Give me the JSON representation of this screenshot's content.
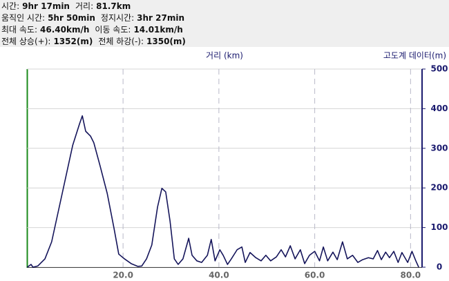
{
  "header": {
    "rows": [
      [
        {
          "label": "시간:",
          "value": "9hr 17min"
        },
        {
          "label": "거리:",
          "value": "81.7km"
        }
      ],
      [
        {
          "label": "움직인 시간:",
          "value": "5hr 50min"
        },
        {
          "label": "정지시간:",
          "value": "3hr 27min"
        }
      ],
      [
        {
          "label": "최대 속도:",
          "value": "46.40km/h"
        },
        {
          "label": "이동 속도:",
          "value": "14.01km/h"
        }
      ],
      [
        {
          "label": "전체 상승(+):",
          "value": "1352(m)"
        },
        {
          "label": "전체 하강(-):",
          "value": "1350(m)"
        }
      ]
    ]
  },
  "chart_data": {
    "type": "line",
    "x_label": "거리 (km)",
    "y_label": "고도계 데이터(m)",
    "xlim": [
      0,
      82.4
    ],
    "ylim": [
      0,
      500
    ],
    "xticks": [
      {
        "value": 20,
        "label": "20.0"
      },
      {
        "value": 40,
        "label": "40.0"
      },
      {
        "value": 60,
        "label": "60.0"
      },
      {
        "value": 80,
        "label": "80.0"
      }
    ],
    "yticks": [
      0,
      100,
      200,
      300,
      400,
      500
    ],
    "grid": true,
    "series": [
      {
        "color": "#14145a",
        "x": [
          0,
          0.8,
          1.2,
          2.2,
          3.7,
          5.1,
          7.3,
          9.5,
          10.9,
          11.5,
          12.2,
          13.2,
          13.9,
          15.2,
          16.7,
          18.1,
          19.1,
          20.3,
          21.7,
          23.1,
          23.9,
          24.9,
          26,
          27.2,
          28.1,
          28.9,
          29.8,
          30.7,
          31.5,
          32.5,
          33.7,
          34.4,
          35.4,
          36.4,
          37.6,
          38.4,
          39.2,
          40.2,
          40.9,
          41.8,
          42.6,
          43.8,
          44.8,
          45.5,
          46.5,
          47.7,
          48.8,
          49.8,
          50.8,
          52,
          53,
          53.9,
          54.9,
          55.9,
          57,
          57.9,
          58.9,
          60,
          61,
          61.8,
          62.7,
          63.8,
          64.7,
          65.8,
          66.8,
          67.9,
          69,
          70,
          71.2,
          72.2,
          73.1,
          73.9,
          74.8,
          75.6,
          76.5,
          77.4,
          78.2,
          79.4,
          80.3,
          81.1,
          81.7
        ],
        "values": [
          0,
          7,
          0,
          3,
          21,
          64,
          186,
          308,
          361,
          382,
          343,
          331,
          314,
          256,
          186,
          99,
          33,
          21,
          9,
          2,
          3,
          21,
          56,
          152,
          199,
          190,
          117,
          21,
          7,
          21,
          73,
          30,
          16,
          12,
          30,
          70,
          16,
          44,
          30,
          7,
          21,
          44,
          51,
          12,
          37,
          24,
          16,
          30,
          16,
          26,
          44,
          26,
          54,
          21,
          44,
          9,
          30,
          40,
          16,
          51,
          16,
          38,
          19,
          64,
          21,
          30,
          12,
          19,
          24,
          21,
          42,
          19,
          38,
          24,
          40,
          12,
          37,
          12,
          40,
          16,
          0
        ]
      }
    ]
  }
}
